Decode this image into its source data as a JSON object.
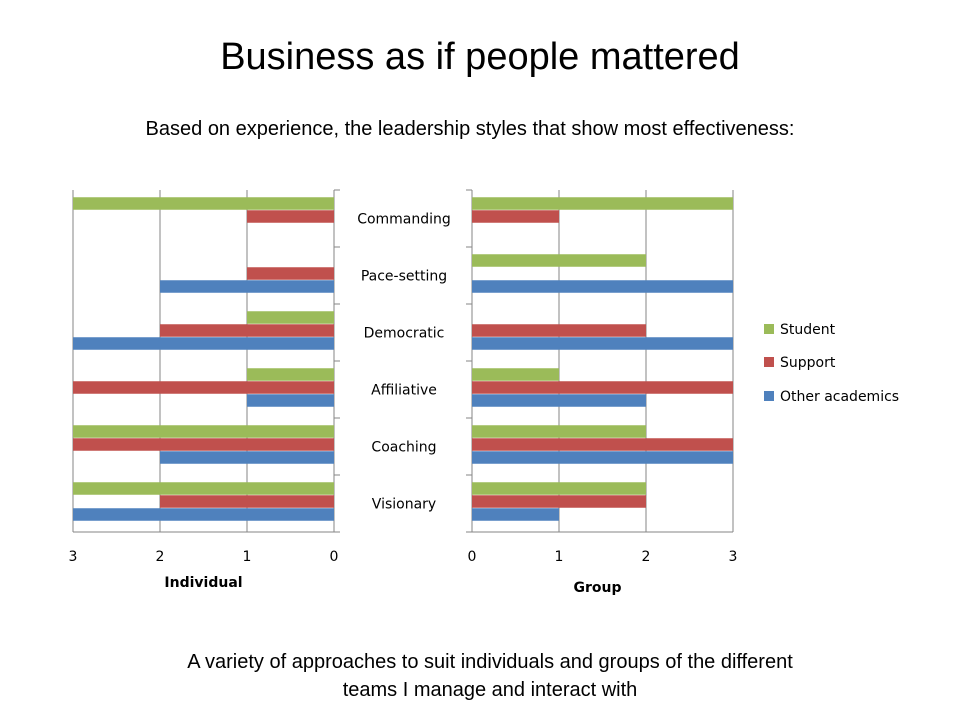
{
  "title": "Business as if people mattered",
  "subtitle": "Based on experience, the leadership styles that show most effectiveness:",
  "footer_line1": "A variety of approaches to suit individuals and groups of the different",
  "footer_line2": "teams I manage and interact with",
  "colors": {
    "Student": "#9BBB59",
    "Support": "#C0504D",
    "Other academics": "#4F81BD"
  },
  "chart_data": [
    {
      "type": "bar",
      "orientation": "horizontal",
      "xlabel": "Individual",
      "axis_direction": "reversed",
      "xlim": [
        0,
        3
      ],
      "xticks": [
        3,
        2,
        1,
        0
      ],
      "grid": true,
      "categories": [
        "Commanding",
        "Pace-setting",
        "Democratic",
        "Affiliative",
        "Coaching",
        "Visionary"
      ],
      "series": [
        {
          "name": "Student",
          "values": [
            3,
            0,
            1,
            1,
            3,
            3
          ]
        },
        {
          "name": "Support",
          "values": [
            1,
            1,
            2,
            3,
            3,
            2
          ]
        },
        {
          "name": "Other academics",
          "values": [
            0,
            2,
            3,
            1,
            2,
            3
          ]
        }
      ]
    },
    {
      "type": "bar",
      "orientation": "horizontal",
      "xlabel": "Group",
      "xlim": [
        0,
        3
      ],
      "xticks": [
        0,
        1,
        2,
        3
      ],
      "grid": true,
      "legend": "right",
      "categories": [
        "Commanding",
        "Pace-setting",
        "Democratic",
        "Affiliative",
        "Coaching",
        "Visionary"
      ],
      "series": [
        {
          "name": "Student",
          "values": [
            3,
            2,
            0,
            1,
            2,
            2
          ]
        },
        {
          "name": "Support",
          "values": [
            1,
            0,
            2,
            3,
            3,
            2
          ]
        },
        {
          "name": "Other academics",
          "values": [
            0,
            3,
            3,
            2,
            3,
            1
          ]
        }
      ]
    }
  ]
}
